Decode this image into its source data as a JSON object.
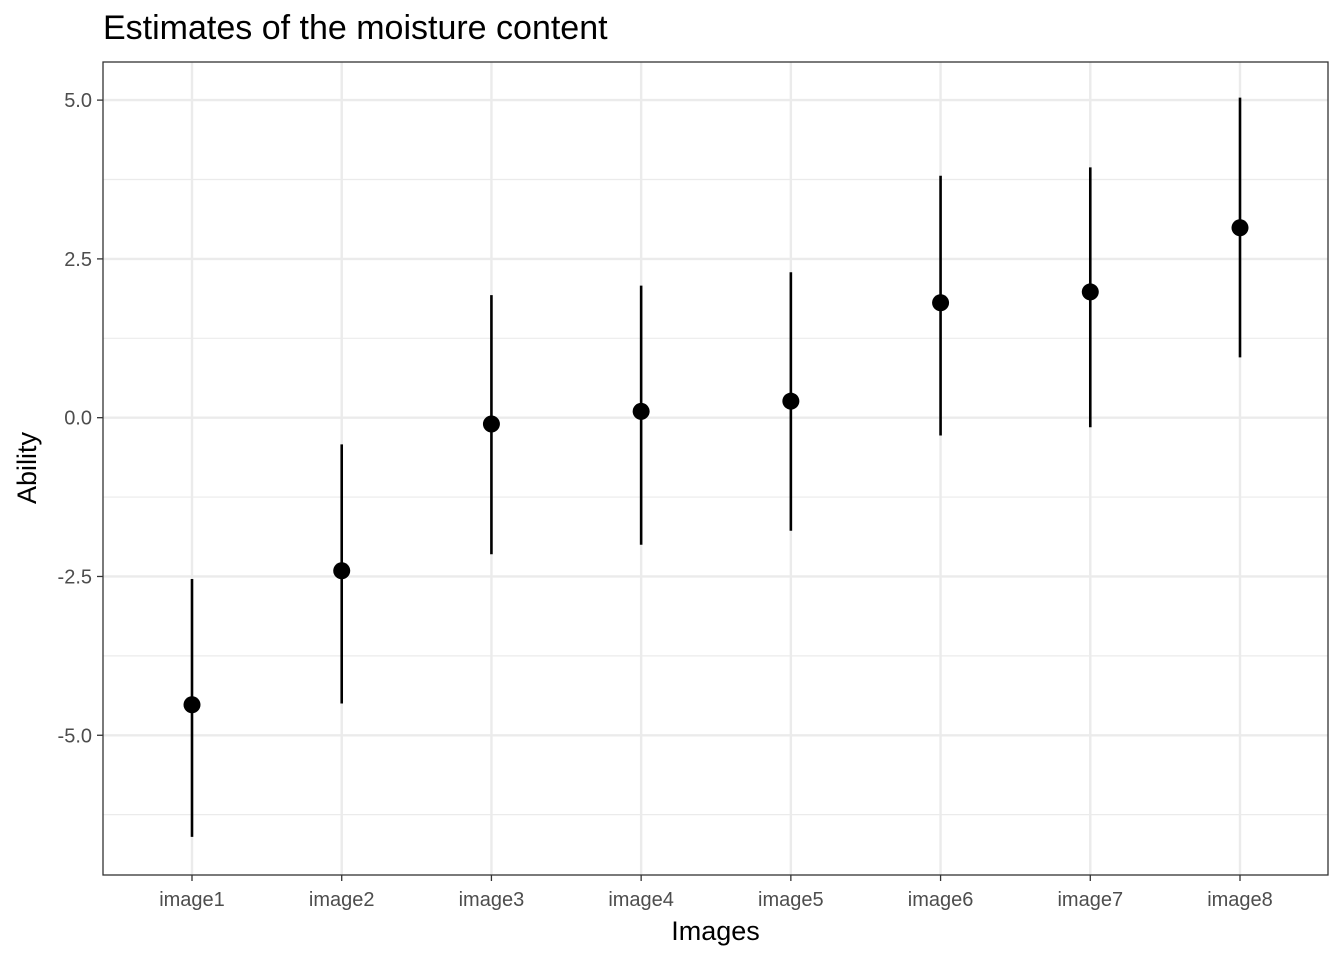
{
  "chart_data": {
    "type": "scatter",
    "title": "Estimates of the moisture content",
    "xlabel": "Images",
    "ylabel": "Ability",
    "categories": [
      "image1",
      "image2",
      "image3",
      "image4",
      "image5",
      "image6",
      "image7",
      "image8"
    ],
    "series": [
      {
        "estimate": [
          -4.52,
          -2.41,
          -0.1,
          0.1,
          0.26,
          1.81,
          1.98,
          2.99
        ],
        "lower": [
          -6.6,
          -4.5,
          -2.15,
          -2.0,
          -1.78,
          -0.28,
          -0.15,
          0.95
        ],
        "upper": [
          -2.54,
          -0.42,
          1.93,
          2.08,
          2.29,
          3.81,
          3.94,
          5.04
        ]
      }
    ],
    "yticks": [
      "5.0",
      "2.5",
      "0.0",
      "-2.5",
      "-5.0"
    ],
    "ytick_values": [
      5.0,
      2.5,
      0.0,
      -2.5,
      -5.0
    ],
    "ylim": [
      -7.2,
      5.6
    ],
    "grid": true,
    "colors": {
      "points": "#000000",
      "grid_major": "#ebebeb",
      "panel_border": "#333333"
    }
  }
}
